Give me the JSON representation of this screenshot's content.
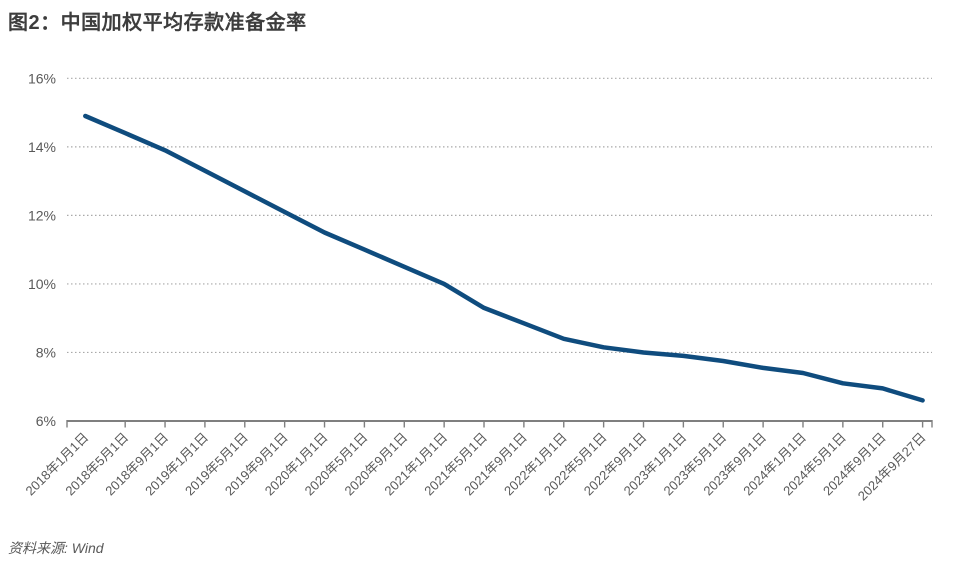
{
  "title": "图2：中国加权平均存款准备金率",
  "source_note": "资料来源: Wind",
  "colors": {
    "line": "#0f4c7e",
    "grid": "#a9a9a9",
    "axis": "#7f7f7f",
    "tick_label": "#595959",
    "title": "#3d3d3d"
  },
  "chart_data": {
    "type": "line",
    "title": "图2：中国加权平均存款准备金率",
    "categories": [
      "2018年1月1日",
      "2018年5月1日",
      "2018年9月1日",
      "2019年1月1日",
      "2019年5月1日",
      "2019年9月1日",
      "2020年1月1日",
      "2020年5月1日",
      "2020年9月1日",
      "2021年1月1日",
      "2021年5月1日",
      "2021年9月1日",
      "2022年1月1日",
      "2022年5月1日",
      "2022年9月1日",
      "2023年1月1日",
      "2023年5月1日",
      "2023年9月1日",
      "2024年1月1日",
      "2024年5月1日",
      "2024年9月1日",
      "2024年9月27日"
    ],
    "series": [
      {
        "name": "中国加权平均存款准备金率",
        "values": [
          14.9,
          14.4,
          13.9,
          13.3,
          12.7,
          12.1,
          11.5,
          11.0,
          10.5,
          10.0,
          9.3,
          8.85,
          8.4,
          8.15,
          8.0,
          7.9,
          7.75,
          7.55,
          7.4,
          7.1,
          6.95,
          6.6
        ]
      }
    ],
    "xlabel": "",
    "ylabel": "",
    "ylim": [
      6,
      16
    ],
    "yticks": [
      6,
      8,
      10,
      12,
      14,
      16
    ],
    "ytick_suffix": "%",
    "grid": "horizontal dotted",
    "legend": "none",
    "x_label_rotation_deg": -45,
    "source": "Wind"
  }
}
